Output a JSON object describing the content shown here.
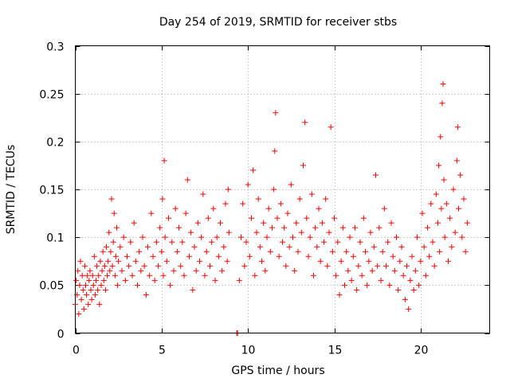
{
  "chart_data": {
    "type": "scatter",
    "title": "Day 254 of 2019, SRMTID for receiver stbs",
    "xlabel": "GPS time / hours",
    "ylabel": "SRMTID / TECUs",
    "xlim": [
      0,
      24
    ],
    "ylim": [
      0,
      0.3
    ],
    "xticks": [
      0,
      5,
      10,
      15,
      20
    ],
    "xtick_labels": [
      "0",
      "5",
      "10",
      "15",
      "20"
    ],
    "yticks": [
      0,
      0.05,
      0.1,
      0.15,
      0.2,
      0.25,
      0.3
    ],
    "ytick_labels": [
      "0",
      "0.05",
      "0.1",
      "0.15",
      "0.2",
      "0.25",
      "0.3"
    ],
    "grid": true,
    "marker": "+",
    "marker_color": "#ff0000",
    "series": [
      {
        "name": "SRMTID",
        "points": [
          [
            0.0,
            0.03
          ],
          [
            0.05,
            0.055
          ],
          [
            0.1,
            0.04
          ],
          [
            0.15,
            0.065
          ],
          [
            0.2,
            0.02
          ],
          [
            0.25,
            0.05
          ],
          [
            0.3,
            0.075
          ],
          [
            0.35,
            0.035
          ],
          [
            0.4,
            0.06
          ],
          [
            0.45,
            0.045
          ],
          [
            0.5,
            0.025
          ],
          [
            0.55,
            0.07
          ],
          [
            0.6,
            0.05
          ],
          [
            0.65,
            0.04
          ],
          [
            0.7,
            0.06
          ],
          [
            0.75,
            0.03
          ],
          [
            0.8,
            0.055
          ],
          [
            0.85,
            0.065
          ],
          [
            0.9,
            0.045
          ],
          [
            0.95,
            0.035
          ],
          [
            1.0,
            0.06
          ],
          [
            1.05,
            0.05
          ],
          [
            1.1,
            0.08
          ],
          [
            1.15,
            0.04
          ],
          [
            1.2,
            0.055
          ],
          [
            1.25,
            0.07
          ],
          [
            1.3,
            0.045
          ],
          [
            1.35,
            0.06
          ],
          [
            1.4,
            0.03
          ],
          [
            1.45,
            0.075
          ],
          [
            1.5,
            0.05
          ],
          [
            1.55,
            0.065
          ],
          [
            1.6,
            0.085
          ],
          [
            1.65,
            0.055
          ],
          [
            1.7,
            0.07
          ],
          [
            1.75,
            0.045
          ],
          [
            1.8,
            0.09
          ],
          [
            1.85,
            0.06
          ],
          [
            1.9,
            0.075
          ],
          [
            1.95,
            0.105
          ],
          [
            2.0,
            0.065
          ],
          [
            2.05,
            0.085
          ],
          [
            2.1,
            0.14
          ],
          [
            2.15,
            0.07
          ],
          [
            2.2,
            0.095
          ],
          [
            2.25,
            0.125
          ],
          [
            2.3,
            0.06
          ],
          [
            2.35,
            0.08
          ],
          [
            2.4,
            0.11
          ],
          [
            2.45,
            0.05
          ],
          [
            2.5,
            0.075
          ],
          [
            2.6,
            0.09
          ],
          [
            2.7,
            0.065
          ],
          [
            2.8,
            0.1
          ],
          [
            2.9,
            0.055
          ],
          [
            3.0,
            0.08
          ],
          [
            3.1,
            0.07
          ],
          [
            3.2,
            0.095
          ],
          [
            3.3,
            0.06
          ],
          [
            3.4,
            0.115
          ],
          [
            3.5,
            0.075
          ],
          [
            3.6,
            0.05
          ],
          [
            3.7,
            0.085
          ],
          [
            3.8,
            0.065
          ],
          [
            3.9,
            0.1
          ],
          [
            4.0,
            0.07
          ],
          [
            4.1,
            0.04
          ],
          [
            4.2,
            0.09
          ],
          [
            4.3,
            0.06
          ],
          [
            4.4,
            0.125
          ],
          [
            4.5,
            0.08
          ],
          [
            4.6,
            0.055
          ],
          [
            4.7,
            0.095
          ],
          [
            4.8,
            0.07
          ],
          [
            4.9,
            0.11
          ],
          [
            5.0,
            0.085
          ],
          [
            5.05,
            0.14
          ],
          [
            5.1,
            0.06
          ],
          [
            5.15,
            0.18
          ],
          [
            5.2,
            0.1
          ],
          [
            5.3,
            0.075
          ],
          [
            5.4,
            0.12
          ],
          [
            5.5,
            0.05
          ],
          [
            5.6,
            0.095
          ],
          [
            5.7,
            0.065
          ],
          [
            5.8,
            0.13
          ],
          [
            5.9,
            0.085
          ],
          [
            6.0,
            0.11
          ],
          [
            6.1,
            0.07
          ],
          [
            6.2,
            0.095
          ],
          [
            6.3,
            0.06
          ],
          [
            6.4,
            0.125
          ],
          [
            6.5,
            0.16
          ],
          [
            6.6,
            0.08
          ],
          [
            6.7,
            0.105
          ],
          [
            6.8,
            0.045
          ],
          [
            6.9,
            0.09
          ],
          [
            7.0,
            0.065
          ],
          [
            7.1,
            0.115
          ],
          [
            7.2,
            0.075
          ],
          [
            7.3,
            0.1
          ],
          [
            7.4,
            0.145
          ],
          [
            7.5,
            0.06
          ],
          [
            7.6,
            0.085
          ],
          [
            7.7,
            0.12
          ],
          [
            7.8,
            0.07
          ],
          [
            7.9,
            0.095
          ],
          [
            8.0,
            0.13
          ],
          [
            8.1,
            0.055
          ],
          [
            8.2,
            0.1
          ],
          [
            8.3,
            0.08
          ],
          [
            8.4,
            0.115
          ],
          [
            8.5,
            0.065
          ],
          [
            8.6,
            0.09
          ],
          [
            8.7,
            0.135
          ],
          [
            8.8,
            0.075
          ],
          [
            8.85,
            0.15
          ],
          [
            8.9,
            0.105
          ],
          [
            9.35,
            0.0
          ],
          [
            9.4,
            0.0
          ],
          [
            9.5,
            0.055
          ],
          [
            9.6,
            0.1
          ],
          [
            9.7,
            0.135
          ],
          [
            9.8,
            0.07
          ],
          [
            9.9,
            0.095
          ],
          [
            10.0,
            0.155
          ],
          [
            10.1,
            0.08
          ],
          [
            10.2,
            0.12
          ],
          [
            10.3,
            0.17
          ],
          [
            10.4,
            0.06
          ],
          [
            10.5,
            0.105
          ],
          [
            10.6,
            0.14
          ],
          [
            10.7,
            0.09
          ],
          [
            10.8,
            0.075
          ],
          [
            10.9,
            0.115
          ],
          [
            11.0,
            0.065
          ],
          [
            11.1,
            0.1
          ],
          [
            11.2,
            0.13
          ],
          [
            11.3,
            0.085
          ],
          [
            11.4,
            0.11
          ],
          [
            11.5,
            0.15
          ],
          [
            11.55,
            0.19
          ],
          [
            11.6,
            0.23
          ],
          [
            11.7,
            0.12
          ],
          [
            11.8,
            0.08
          ],
          [
            11.9,
            0.135
          ],
          [
            12.0,
            0.095
          ],
          [
            12.1,
            0.11
          ],
          [
            12.2,
            0.07
          ],
          [
            12.3,
            0.125
          ],
          [
            12.4,
            0.09
          ],
          [
            12.5,
            0.155
          ],
          [
            12.6,
            0.1
          ],
          [
            12.7,
            0.065
          ],
          [
            12.8,
            0.115
          ],
          [
            12.9,
            0.085
          ],
          [
            13.0,
            0.14
          ],
          [
            13.1,
            0.105
          ],
          [
            13.2,
            0.175
          ],
          [
            13.3,
            0.22
          ],
          [
            13.4,
            0.12
          ],
          [
            13.5,
            0.08
          ],
          [
            13.6,
            0.1
          ],
          [
            13.7,
            0.145
          ],
          [
            13.8,
            0.06
          ],
          [
            13.9,
            0.11
          ],
          [
            14.0,
            0.09
          ],
          [
            14.1,
            0.13
          ],
          [
            14.2,
            0.075
          ],
          [
            14.3,
            0.115
          ],
          [
            14.4,
            0.095
          ],
          [
            14.5,
            0.14
          ],
          [
            14.6,
            0.07
          ],
          [
            14.7,
            0.105
          ],
          [
            14.8,
            0.215
          ],
          [
            14.9,
            0.085
          ],
          [
            15.0,
            0.12
          ],
          [
            15.1,
            0.06
          ],
          [
            15.2,
            0.095
          ],
          [
            15.3,
            0.04
          ],
          [
            15.4,
            0.075
          ],
          [
            15.5,
            0.11
          ],
          [
            15.6,
            0.05
          ],
          [
            15.7,
            0.085
          ],
          [
            15.8,
            0.065
          ],
          [
            15.9,
            0.1
          ],
          [
            16.0,
            0.055
          ],
          [
            16.1,
            0.08
          ],
          [
            16.2,
            0.11
          ],
          [
            16.3,
            0.045
          ],
          [
            16.4,
            0.07
          ],
          [
            16.5,
            0.095
          ],
          [
            16.6,
            0.06
          ],
          [
            16.7,
            0.12
          ],
          [
            16.8,
            0.085
          ],
          [
            16.9,
            0.05
          ],
          [
            17.0,
            0.075
          ],
          [
            17.1,
            0.105
          ],
          [
            17.2,
            0.065
          ],
          [
            17.3,
            0.09
          ],
          [
            17.4,
            0.165
          ],
          [
            17.5,
            0.07
          ],
          [
            17.6,
            0.11
          ],
          [
            17.7,
            0.055
          ],
          [
            17.8,
            0.085
          ],
          [
            17.9,
            0.13
          ],
          [
            18.0,
            0.07
          ],
          [
            18.1,
            0.095
          ],
          [
            18.2,
            0.05
          ],
          [
            18.3,
            0.115
          ],
          [
            18.4,
            0.08
          ],
          [
            18.5,
            0.065
          ],
          [
            18.6,
            0.1
          ],
          [
            18.7,
            0.045
          ],
          [
            18.8,
            0.075
          ],
          [
            18.9,
            0.09
          ],
          [
            19.0,
            0.06
          ],
          [
            19.1,
            0.035
          ],
          [
            19.2,
            0.07
          ],
          [
            19.3,
            0.025
          ],
          [
            19.4,
            0.055
          ],
          [
            19.5,
            0.08
          ],
          [
            19.6,
            0.045
          ],
          [
            19.7,
            0.065
          ],
          [
            19.8,
            0.1
          ],
          [
            19.9,
            0.05
          ],
          [
            20.0,
            0.075
          ],
          [
            20.1,
            0.125
          ],
          [
            20.2,
            0.09
          ],
          [
            20.3,
            0.06
          ],
          [
            20.4,
            0.11
          ],
          [
            20.5,
            0.08
          ],
          [
            20.6,
            0.135
          ],
          [
            20.7,
            0.095
          ],
          [
            20.8,
            0.07
          ],
          [
            20.9,
            0.145
          ],
          [
            21.0,
            0.115
          ],
          [
            21.05,
            0.175
          ],
          [
            21.1,
            0.085
          ],
          [
            21.15,
            0.205
          ],
          [
            21.2,
            0.13
          ],
          [
            21.25,
            0.24
          ],
          [
            21.3,
            0.26
          ],
          [
            21.35,
            0.16
          ],
          [
            21.4,
            0.1
          ],
          [
            21.5,
            0.135
          ],
          [
            21.6,
            0.075
          ],
          [
            21.7,
            0.12
          ],
          [
            21.8,
            0.09
          ],
          [
            21.9,
            0.15
          ],
          [
            22.0,
            0.105
          ],
          [
            22.1,
            0.18
          ],
          [
            22.15,
            0.215
          ],
          [
            22.2,
            0.13
          ],
          [
            22.3,
            0.165
          ],
          [
            22.4,
            0.1
          ],
          [
            22.5,
            0.14
          ],
          [
            22.6,
            0.085
          ],
          [
            22.7,
            0.115
          ]
        ]
      }
    ]
  }
}
